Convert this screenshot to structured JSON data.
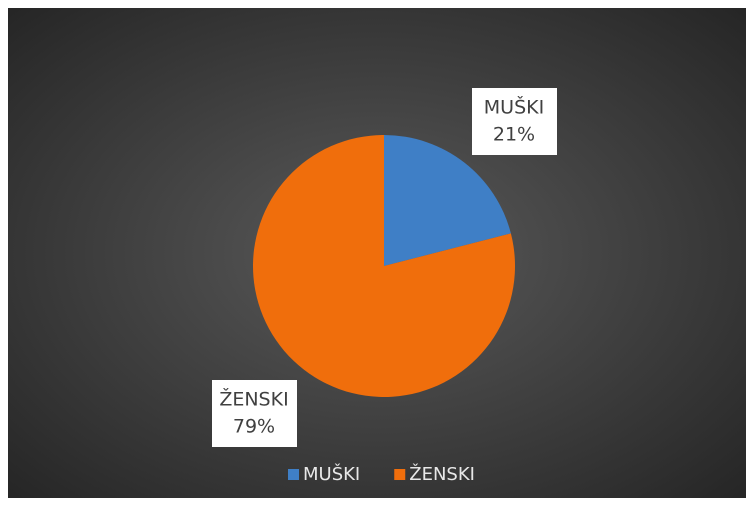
{
  "chart_data": {
    "type": "pie",
    "categories": [
      "MUŠKI",
      "ŽENSKI"
    ],
    "values": [
      21,
      79
    ],
    "value_labels": [
      "21%",
      "79%"
    ],
    "colors": [
      "#3f7fc6",
      "#f06e0c"
    ],
    "legend": "bottom"
  }
}
